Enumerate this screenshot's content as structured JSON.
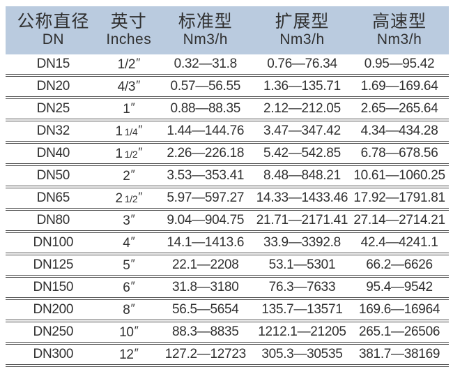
{
  "colors": {
    "header_bg": "#bacbdf",
    "text": "#303030",
    "line": "#4d4d4d"
  },
  "table": {
    "inches_mark": "″",
    "columns": [
      {
        "line1": "公称直径",
        "line2": "DN"
      },
      {
        "line1": "英寸",
        "line2": "Inches"
      },
      {
        "line1": "标准型",
        "line2": "Nm3/h"
      },
      {
        "line1": "扩展型",
        "line2": "Nm3/h"
      },
      {
        "line1": "高速型",
        "line2": "Nm3/h"
      }
    ],
    "rows": [
      {
        "dn": "DN15",
        "inches": "1/2",
        "inches_frac": "",
        "standard": "0.32—31.8",
        "extended": "0.76—76.34",
        "high_speed": "0.95—95.42"
      },
      {
        "dn": "DN20",
        "inches": "4/3",
        "inches_frac": "",
        "standard": "0.57—56.55",
        "extended": "1.36—135.71",
        "high_speed": "1.69—169.64"
      },
      {
        "dn": "DN25",
        "inches": "1",
        "inches_frac": "",
        "standard": "0.88—88.35",
        "extended": "2.12—212.05",
        "high_speed": "2.65—265.64"
      },
      {
        "dn": "DN32",
        "inches": "1",
        "inches_frac": "1/4",
        "standard": "1.44—144.76",
        "extended": "3.47—347.42",
        "high_speed": "4.34—434.28"
      },
      {
        "dn": "DN40",
        "inches": "1",
        "inches_frac": "1/2",
        "standard": "2.26—226.18",
        "extended": "5.42—542.85",
        "high_speed": "6.78—678.56"
      },
      {
        "dn": "DN50",
        "inches": "2",
        "inches_frac": "",
        "standard": "3.53—353.41",
        "extended": "8.48—848.21",
        "high_speed": "10.61—1060.25"
      },
      {
        "dn": "DN65",
        "inches": "2",
        "inches_frac": "1/2",
        "standard": "5.97—597.27",
        "extended": "14.33—1433.46",
        "high_speed": "17.92—1791.81"
      },
      {
        "dn": "DN80",
        "inches": "3",
        "inches_frac": "",
        "standard": "9.04—904.75",
        "extended": "21.71—2171.41",
        "high_speed": "27.14—2714.21"
      },
      {
        "dn": "DN100",
        "inches": "4",
        "inches_frac": "",
        "standard": "14.1—1413.6",
        "extended": "33.9—3392.8",
        "high_speed": "42.4—4241.1"
      },
      {
        "dn": "DN125",
        "inches": "5",
        "inches_frac": "",
        "standard": "22.1—2208",
        "extended": "53.1—5301",
        "high_speed": "66.2—6626"
      },
      {
        "dn": "DN150",
        "inches": "6",
        "inches_frac": "",
        "standard": "31.8—3180",
        "extended": "76.3—7633",
        "high_speed": "95.4—9542"
      },
      {
        "dn": "DN200",
        "inches": "8",
        "inches_frac": "",
        "standard": "56.5—5654",
        "extended": "135.7—13571",
        "high_speed": "169.6—16964"
      },
      {
        "dn": "DN250",
        "inches": "10",
        "inches_frac": "",
        "standard": "88.3—8835",
        "extended": "1212.1—21205",
        "high_speed": "265.1—26506"
      },
      {
        "dn": "DN300",
        "inches": "12",
        "inches_frac": "",
        "standard": "127.2—12723",
        "extended": "305.3—30535",
        "high_speed": "381.7—38169"
      }
    ]
  }
}
